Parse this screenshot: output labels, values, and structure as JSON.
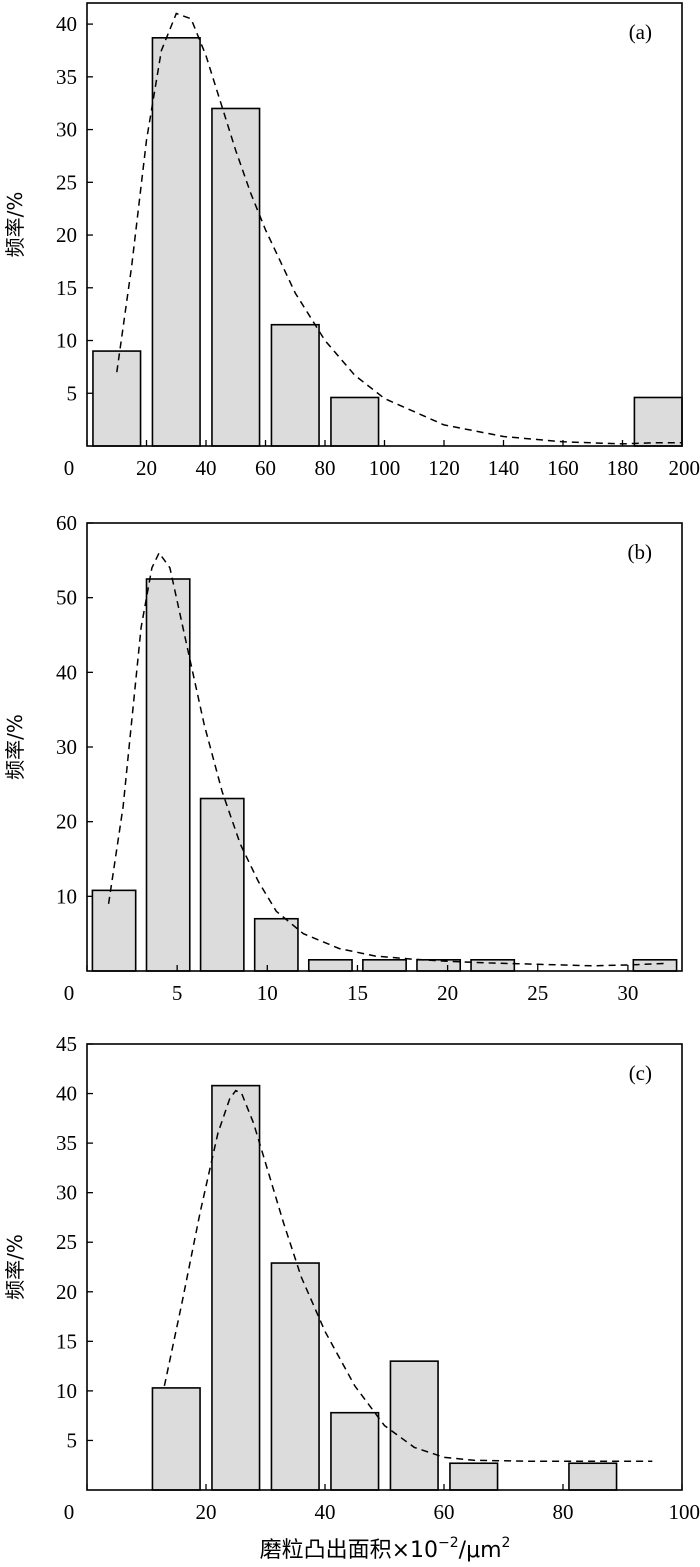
{
  "figure": {
    "xlabel_main": "磨粒凸出面积×10",
    "xlabel_exp": "−2",
    "xlabel_unit": "/μm",
    "xlabel_unit_exp": "2"
  },
  "chart_data": [
    {
      "type": "bar",
      "panel": "(a)",
      "ylabel": "频率/%",
      "xlabel": "",
      "xlim": [
        0,
        200
      ],
      "ylim": [
        0,
        42
      ],
      "xticks": [
        0,
        20,
        40,
        60,
        80,
        100,
        120,
        140,
        160,
        180,
        200
      ],
      "yticks": [
        5,
        10,
        15,
        20,
        25,
        30,
        35,
        40
      ],
      "bar_width": 16,
      "bars": [
        {
          "x": 10,
          "value": 9
        },
        {
          "x": 30,
          "value": 38.7
        },
        {
          "x": 50,
          "value": 32
        },
        {
          "x": 70,
          "value": 11.5
        },
        {
          "x": 90,
          "value": 4.6
        },
        {
          "x": 192,
          "value": 4.6
        }
      ],
      "fit_curve": [
        [
          10,
          7
        ],
        [
          15,
          17
        ],
        [
          20,
          29
        ],
        [
          25,
          37.5
        ],
        [
          30,
          41
        ],
        [
          35,
          40.5
        ],
        [
          40,
          37
        ],
        [
          45,
          32.5
        ],
        [
          50,
          28
        ],
        [
          55,
          24
        ],
        [
          60,
          20.5
        ],
        [
          70,
          14.5
        ],
        [
          80,
          10
        ],
        [
          90,
          6.7
        ],
        [
          100,
          4.5
        ],
        [
          120,
          2
        ],
        [
          140,
          0.9
        ],
        [
          160,
          0.4
        ],
        [
          180,
          0.2
        ],
        [
          190,
          0.3
        ],
        [
          200,
          0.3
        ]
      ]
    },
    {
      "type": "bar",
      "panel": "(b)",
      "ylabel": "频率/%",
      "xlabel": "",
      "xlim": [
        0,
        33
      ],
      "ylim": [
        0,
        60
      ],
      "xticks": [
        0,
        5,
        10,
        15,
        20,
        25,
        30
      ],
      "yticks": [
        10,
        20,
        30,
        40,
        50,
        60
      ],
      "bar_width": 2.4,
      "bars": [
        {
          "x": 1.5,
          "value": 10.8
        },
        {
          "x": 4.5,
          "value": 52.5
        },
        {
          "x": 7.5,
          "value": 23.1
        },
        {
          "x": 10.5,
          "value": 7
        },
        {
          "x": 13.5,
          "value": 1.5
        },
        {
          "x": 16.5,
          "value": 1.5
        },
        {
          "x": 19.5,
          "value": 1.5
        },
        {
          "x": 22.5,
          "value": 1.5
        },
        {
          "x": 31.5,
          "value": 1.5
        }
      ],
      "fit_curve": [
        [
          1.2,
          9
        ],
        [
          2,
          22
        ],
        [
          3,
          46
        ],
        [
          3.6,
          54
        ],
        [
          4,
          56
        ],
        [
          4.6,
          54
        ],
        [
          5.5,
          44
        ],
        [
          6.5,
          33
        ],
        [
          7.5,
          24
        ],
        [
          8.5,
          17
        ],
        [
          9.5,
          12
        ],
        [
          10.5,
          8
        ],
        [
          12,
          5
        ],
        [
          14,
          3
        ],
        [
          16,
          2
        ],
        [
          18,
          1.6
        ],
        [
          20,
          1.3
        ],
        [
          22,
          1.1
        ],
        [
          25,
          0.9
        ],
        [
          28,
          0.7
        ],
        [
          30,
          0.8
        ],
        [
          32,
          1
        ]
      ]
    },
    {
      "type": "bar",
      "panel": "(c)",
      "ylabel": "频率/%",
      "xlabel": "磨粒凸出面积×10⁻²/μm²",
      "xlim": [
        0,
        100
      ],
      "ylim": [
        0,
        45
      ],
      "xticks": [
        0,
        20,
        40,
        60,
        80,
        100
      ],
      "yticks": [
        5,
        10,
        15,
        20,
        25,
        30,
        35,
        40,
        45
      ],
      "bar_width": 8,
      "bars": [
        {
          "x": 15,
          "value": 10.3
        },
        {
          "x": 25,
          "value": 40.8
        },
        {
          "x": 35,
          "value": 22.9
        },
        {
          "x": 45,
          "value": 7.8
        },
        {
          "x": 55,
          "value": 13
        },
        {
          "x": 65,
          "value": 2.7
        },
        {
          "x": 85,
          "value": 2.7
        }
      ],
      "fit_curve": [
        [
          13,
          10.5
        ],
        [
          16,
          19
        ],
        [
          19,
          28
        ],
        [
          22,
          36
        ],
        [
          24,
          39.5
        ],
        [
          25,
          40.3
        ],
        [
          26,
          40
        ],
        [
          28,
          37
        ],
        [
          30,
          33
        ],
        [
          33,
          27
        ],
        [
          36,
          21.5
        ],
        [
          40,
          16
        ],
        [
          45,
          10.5
        ],
        [
          50,
          6.5
        ],
        [
          55,
          4.3
        ],
        [
          60,
          3.3
        ],
        [
          65,
          3
        ],
        [
          75,
          2.9
        ],
        [
          85,
          2.9
        ],
        [
          95,
          2.9
        ]
      ]
    }
  ]
}
